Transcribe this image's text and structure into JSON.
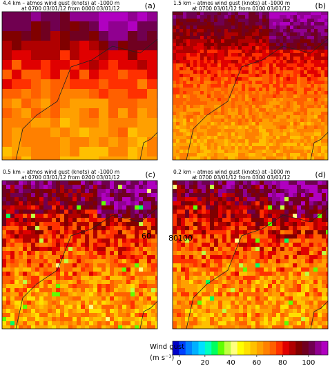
{
  "panels": [
    {
      "title": "4.4 km – atmos wind gust (knots) at -1000 m",
      "subtitle": "at 0700 03/01/12 from 0000 03/01/12",
      "label": "(a)"
    },
    {
      "title": "1.5 km – atmos wind gust (knots) at -1000 m",
      "subtitle": "at 0700 03/01/12 from 0100 03/01/12",
      "label": "(b)"
    },
    {
      "title": "0.5 km – atmos wind gust (knots) at -1000 m",
      "subtitle": "at 0700 03/01/12 from 0200 03/01/12",
      "label": "(c)"
    },
    {
      "title": "0.2 km – atmos wind gust (knots) at -1000 m",
      "subtitle": "at 0700 03/01/12 from 0300 03/01/12",
      "label": "(d)"
    }
  ],
  "map_labels": [
    "60",
    "80",
    "100"
  ],
  "colorbar": {
    "title": "Wind gust",
    "units": "(m s⁻¹)",
    "clim": [
      -5,
      115
    ],
    "ticks": [
      0,
      20,
      40,
      60,
      80,
      100
    ],
    "colors": [
      "#0000c8",
      "#0040ff",
      "#0080ff",
      "#00b0ff",
      "#00e0ff",
      "#00ffc0",
      "#00ff60",
      "#60ff00",
      "#c0ff40",
      "#ffff80",
      "#ffff00",
      "#ffe000",
      "#ffc000",
      "#ffa000",
      "#ff8000",
      "#ff6000",
      "#ff3000",
      "#e00000",
      "#b00000",
      "#800000",
      "#700020",
      "#700050",
      "#900090",
      "#b000c0"
    ]
  }
}
